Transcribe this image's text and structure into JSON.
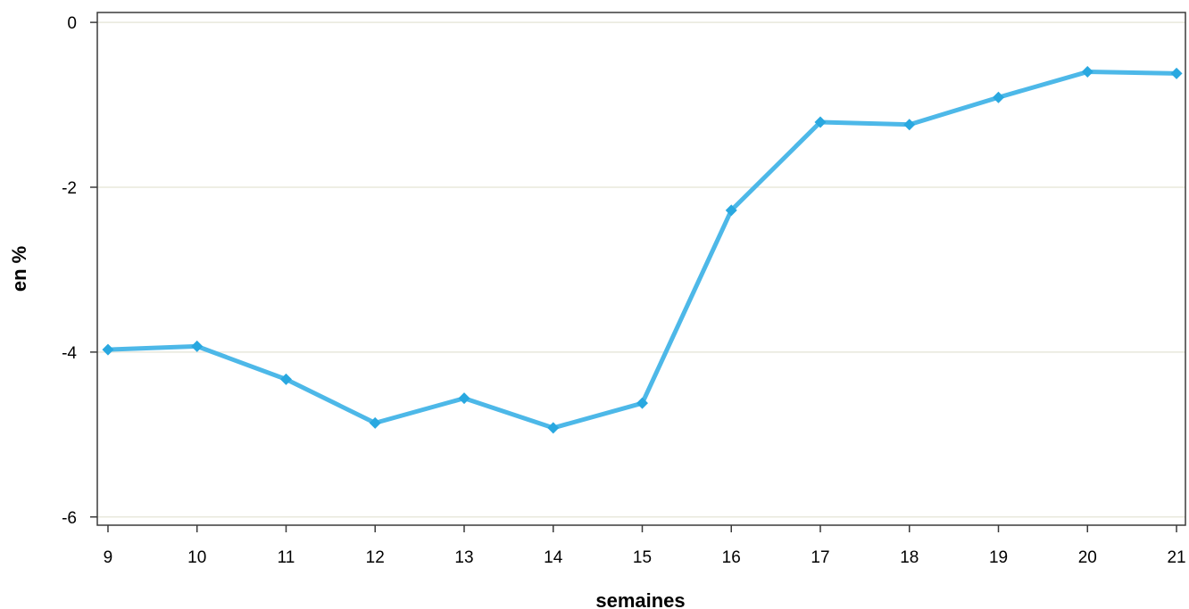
{
  "chart_data": {
    "type": "line",
    "title": "",
    "xlabel": "semaines",
    "ylabel": "en %",
    "x": [
      9,
      10,
      11,
      12,
      13,
      14,
      15,
      16,
      17,
      18,
      19,
      20,
      21
    ],
    "x_tick_labels": [
      "9",
      "10",
      "11",
      "12",
      "13",
      "14",
      "15",
      "16",
      "17",
      "18",
      "19",
      "20",
      "21"
    ],
    "y_ticks": [
      0,
      -2,
      -4,
      -6
    ],
    "y_tick_labels": [
      "0",
      "-2",
      "-4",
      "-6"
    ],
    "ylim": [
      -6.1,
      0.12
    ],
    "xlim": [
      8.88,
      21.1
    ],
    "grid": "horizontal",
    "legend": "none",
    "series": [
      {
        "values": [
          -3.97,
          -3.93,
          -4.33,
          -4.86,
          -4.56,
          -4.92,
          -4.62,
          -2.28,
          -1.21,
          -1.24,
          -0.91,
          -0.6,
          -0.62
        ],
        "color": "#29a8e0",
        "marker": "diamond"
      }
    ]
  }
}
